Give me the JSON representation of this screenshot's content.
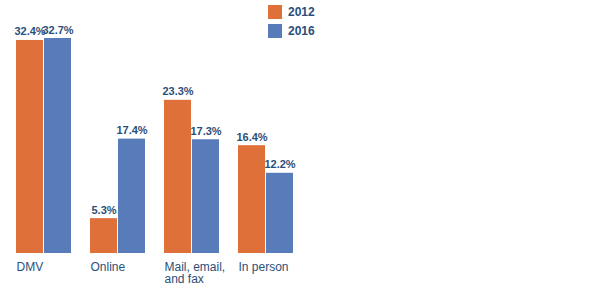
{
  "chart_data": {
    "type": "bar",
    "categories": [
      "DMV",
      "Online",
      "Mail, email, and fax",
      "In person"
    ],
    "series": [
      {
        "name": "2012",
        "color": "#e07039",
        "values": [
          32.4,
          5.3,
          23.3,
          16.4
        ],
        "value_labels": [
          "32.4%",
          "5.3%",
          "23.3%",
          "16.4%"
        ]
      },
      {
        "name": "2016",
        "color": "#587bba",
        "values": [
          32.7,
          17.4,
          17.3,
          12.2
        ],
        "value_labels": [
          "32.7%",
          "17.4%",
          "17.3%",
          "12.2%"
        ]
      }
    ],
    "data_labels": true,
    "tick_labels": "x",
    "legend": "top-right",
    "grid": false
  }
}
